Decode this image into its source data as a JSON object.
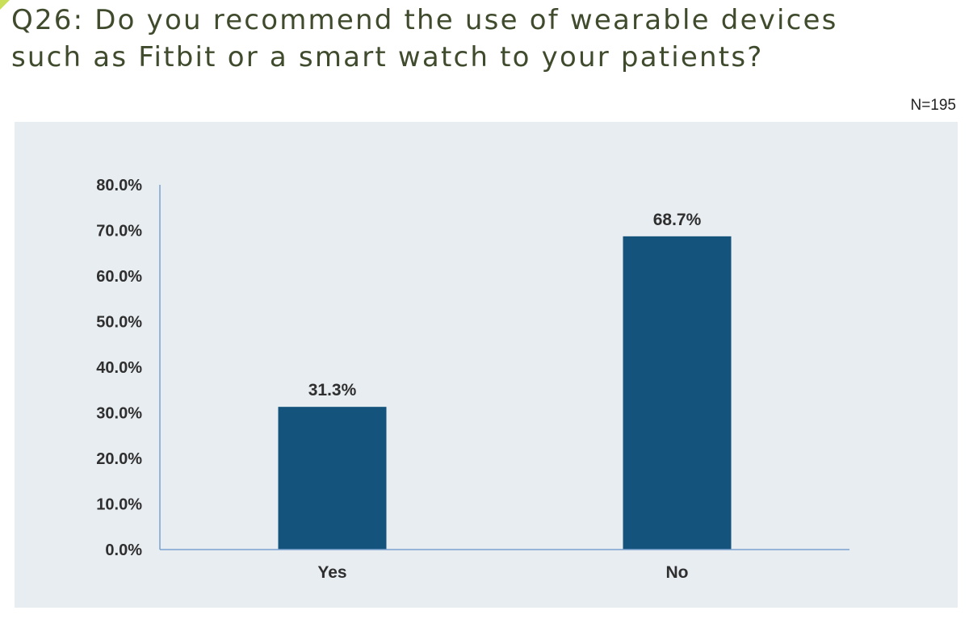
{
  "header": {
    "title_line1": "Q26: Do you recommend the use of wearable devices",
    "title_line2": "such as Fitbit or a smart watch to your patients?",
    "sample_size": "N=195"
  },
  "colors": {
    "bar": "#14547c",
    "axis": "#7aa0cf",
    "panel": "#e8edf1",
    "title": "#3f4b2c",
    "accent": "#c9df5a"
  },
  "chart_data": {
    "type": "bar",
    "title": "Q26: Do you recommend the use of wearable devices such as Fitbit or a smart watch to your patients?",
    "xlabel": "",
    "ylabel": "",
    "categories": [
      "Yes",
      "No"
    ],
    "values": [
      31.3,
      68.7
    ],
    "value_labels": [
      "31.3%",
      "68.7%"
    ],
    "ylim": [
      0,
      80
    ],
    "yticks": [
      0,
      10,
      20,
      30,
      40,
      50,
      60,
      70,
      80
    ],
    "ytick_labels": [
      "0.0%",
      "10.0%",
      "20.0%",
      "30.0%",
      "40.0%",
      "50.0%",
      "60.0%",
      "70.0%",
      "80.0%"
    ],
    "grid": false,
    "legend": "none"
  }
}
